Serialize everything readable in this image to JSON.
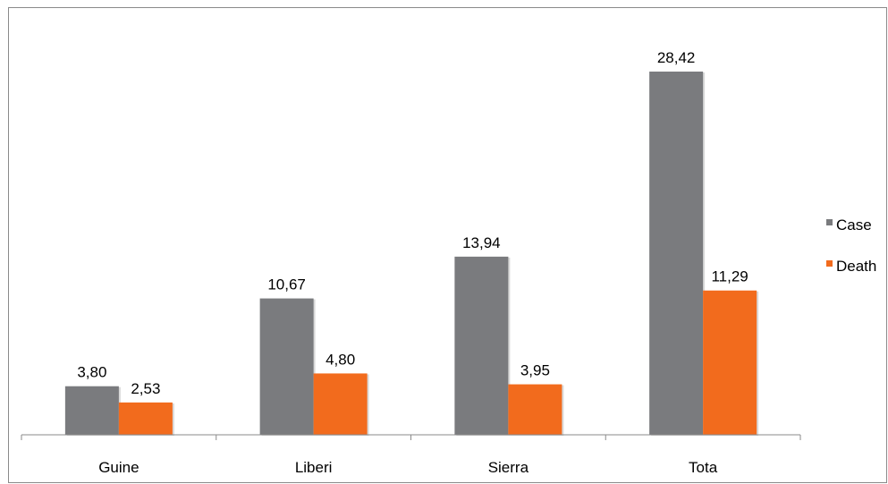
{
  "chart_data": {
    "type": "bar",
    "title": "",
    "xlabel": "",
    "ylabel": "",
    "categories": [
      "Guine",
      "Liberi",
      "Sierra",
      "Tota"
    ],
    "series": [
      {
        "name": "Case",
        "color": "#7a7b7e",
        "values": [
          3.8,
          10.67,
          13.94,
          28.42
        ],
        "labels": [
          "3,80",
          "10,67",
          "13,94",
          "28,42"
        ]
      },
      {
        "name": "Death",
        "color": "#f26b1d",
        "values": [
          2.53,
          4.8,
          3.95,
          11.29
        ],
        "labels": [
          "2,53",
          "4,80",
          "3,95",
          "11,29"
        ]
      }
    ],
    "ylim": [
      0,
      30
    ],
    "grid": false,
    "legend_position": "right"
  }
}
